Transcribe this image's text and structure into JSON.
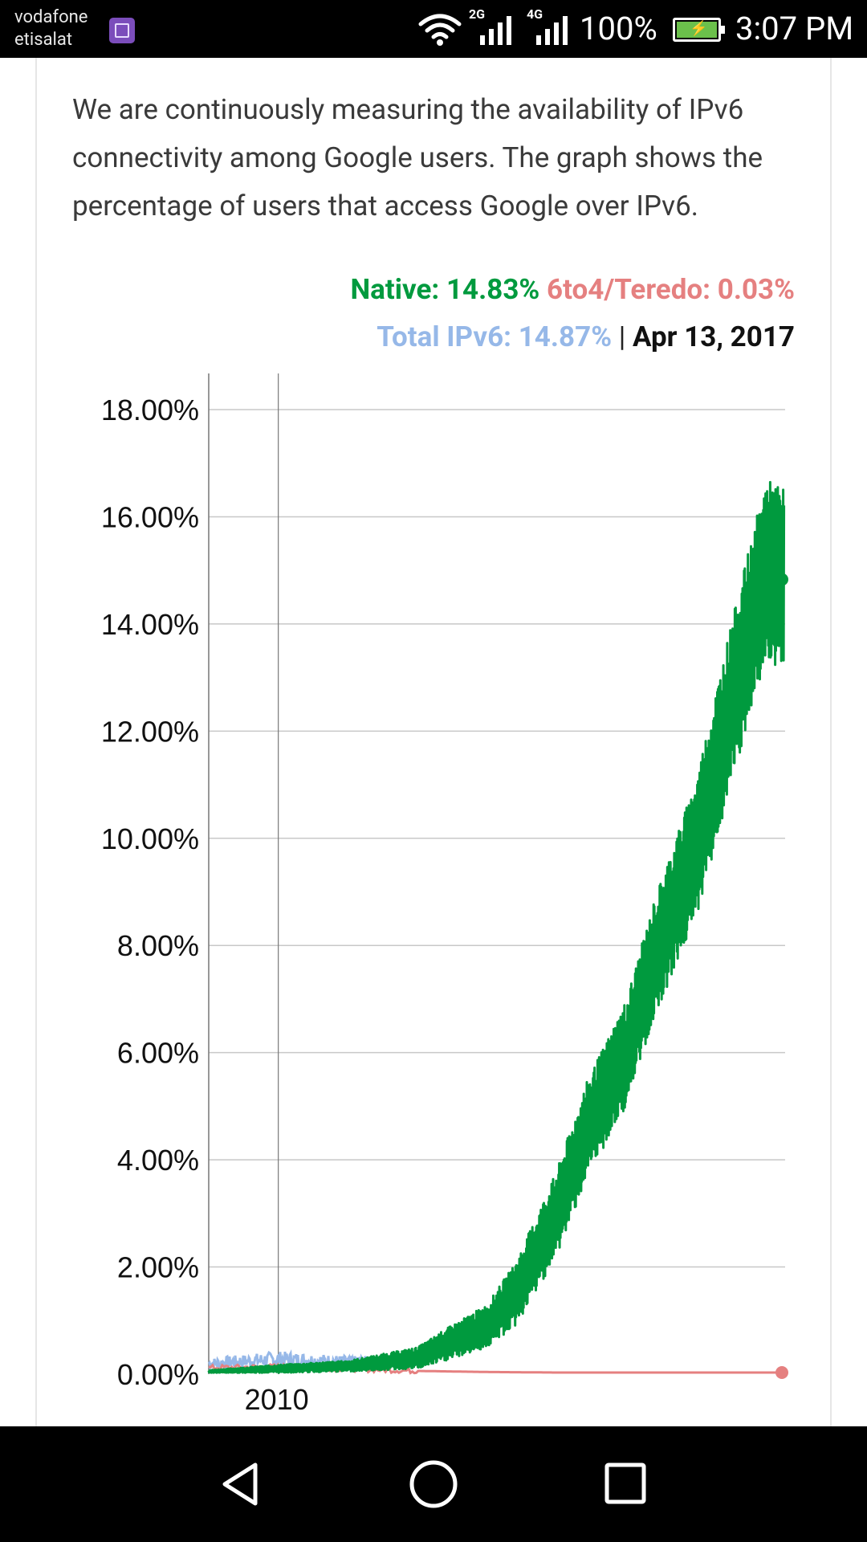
{
  "status_bar": {
    "carrier_line1": "vodafone",
    "carrier_line2": "etisalat",
    "network_1": "2G",
    "network_2": "4G",
    "battery": "100%",
    "time": "3:07 PM"
  },
  "intro_text": "We are continuously measuring the availability of IPv6 connectivity among Google users. The graph shows the percentage of users that access Google over IPv6.",
  "headline": {
    "native": "Native: 14.83%",
    "teredo": "6to4/Teredo: 0.03%",
    "total": "Total IPv6: 14.87%",
    "separator": "|",
    "date": "Apr 13, 2017"
  },
  "colors": {
    "native": "#009a3e",
    "teredo": "#e58080",
    "total": "#96b8e8",
    "grid": "#c8c8c8",
    "axis": "#777777"
  },
  "chart_data": {
    "type": "line",
    "title": "",
    "xlabel": "",
    "ylabel": "",
    "x_tick_labels": [
      "2010"
    ],
    "y_tick_labels": [
      "0.00%",
      "2.00%",
      "4.00%",
      "6.00%",
      "8.00%",
      "10.00%",
      "12.00%",
      "14.00%",
      "16.00%",
      "18.00%"
    ],
    "ylim": [
      0,
      18
    ],
    "xlim": [
      "2009-01-01",
      "2017-04-13"
    ],
    "grid": true,
    "series": [
      {
        "name": "Native",
        "x": [
          "2009-01-01",
          "2010-01-01",
          "2011-01-01",
          "2012-01-01",
          "2012-06-01",
          "2013-01-01",
          "2013-06-01",
          "2014-01-01",
          "2014-06-01",
          "2015-01-01",
          "2015-06-01",
          "2016-01-01",
          "2016-06-01",
          "2017-01-01",
          "2017-04-13"
        ],
        "values": [
          0.05,
          0.1,
          0.15,
          0.3,
          0.55,
          0.9,
          1.5,
          3.0,
          4.5,
          6.0,
          7.8,
          9.8,
          12.0,
          15.0,
          14.83
        ],
        "band": [
          0.05,
          0.15,
          0.2,
          0.4,
          0.6,
          0.8,
          1.2,
          1.6,
          1.8,
          2.0,
          2.2,
          2.6,
          3.0,
          3.4,
          3.4
        ],
        "last_value_label": "14.83%"
      },
      {
        "name": "6to4/Teredo",
        "x": [
          "2009-01-01",
          "2010-01-01",
          "2011-01-01",
          "2012-01-01",
          "2013-01-01",
          "2014-01-01",
          "2015-01-01",
          "2016-01-01",
          "2017-04-13"
        ],
        "values": [
          0.12,
          0.14,
          0.1,
          0.06,
          0.04,
          0.03,
          0.03,
          0.03,
          0.03
        ],
        "last_value_label": "0.03%"
      },
      {
        "name": "Total IPv6",
        "x": [
          "2009-01-01",
          "2010-01-01",
          "2011-01-01",
          "2012-01-01"
        ],
        "values": [
          0.2,
          0.28,
          0.24,
          0.25
        ],
        "band": [
          0.2,
          0.3,
          0.2,
          0.15
        ],
        "last_value_label": "14.87%"
      }
    ]
  },
  "nav": {
    "back": "back-icon",
    "home": "home-icon",
    "recent": "recent-apps-icon"
  }
}
